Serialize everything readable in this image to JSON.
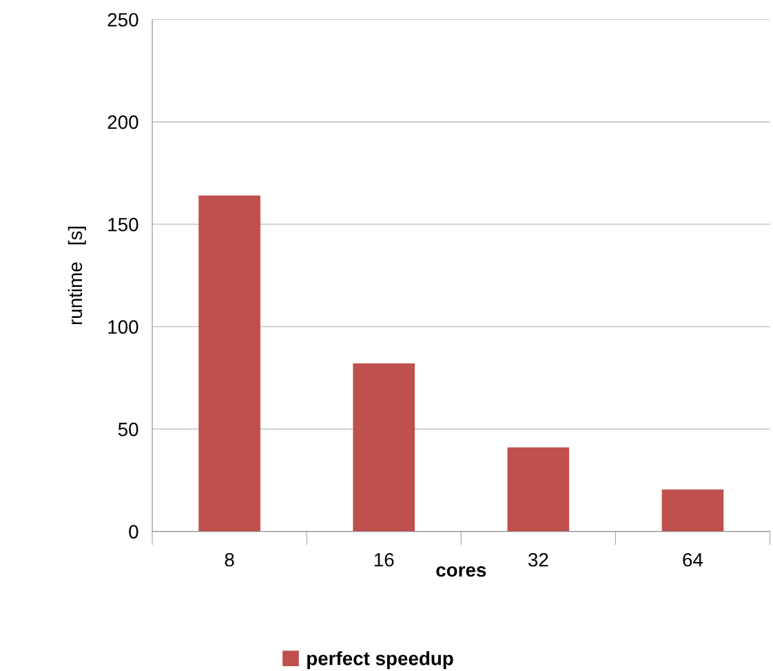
{
  "chart_data": {
    "type": "bar",
    "categories": [
      "8",
      "16",
      "32",
      "64"
    ],
    "series": [
      {
        "name": "perfect speedup",
        "color": "#c0504d",
        "values": [
          164,
          82,
          41,
          20.5
        ]
      }
    ],
    "xlabel": "cores",
    "ylabel": "runtime   [s]",
    "ylim": [
      0,
      250
    ],
    "yticks": [
      0,
      50,
      100,
      150,
      200,
      250
    ],
    "grid": "y",
    "legend": "bottom"
  }
}
